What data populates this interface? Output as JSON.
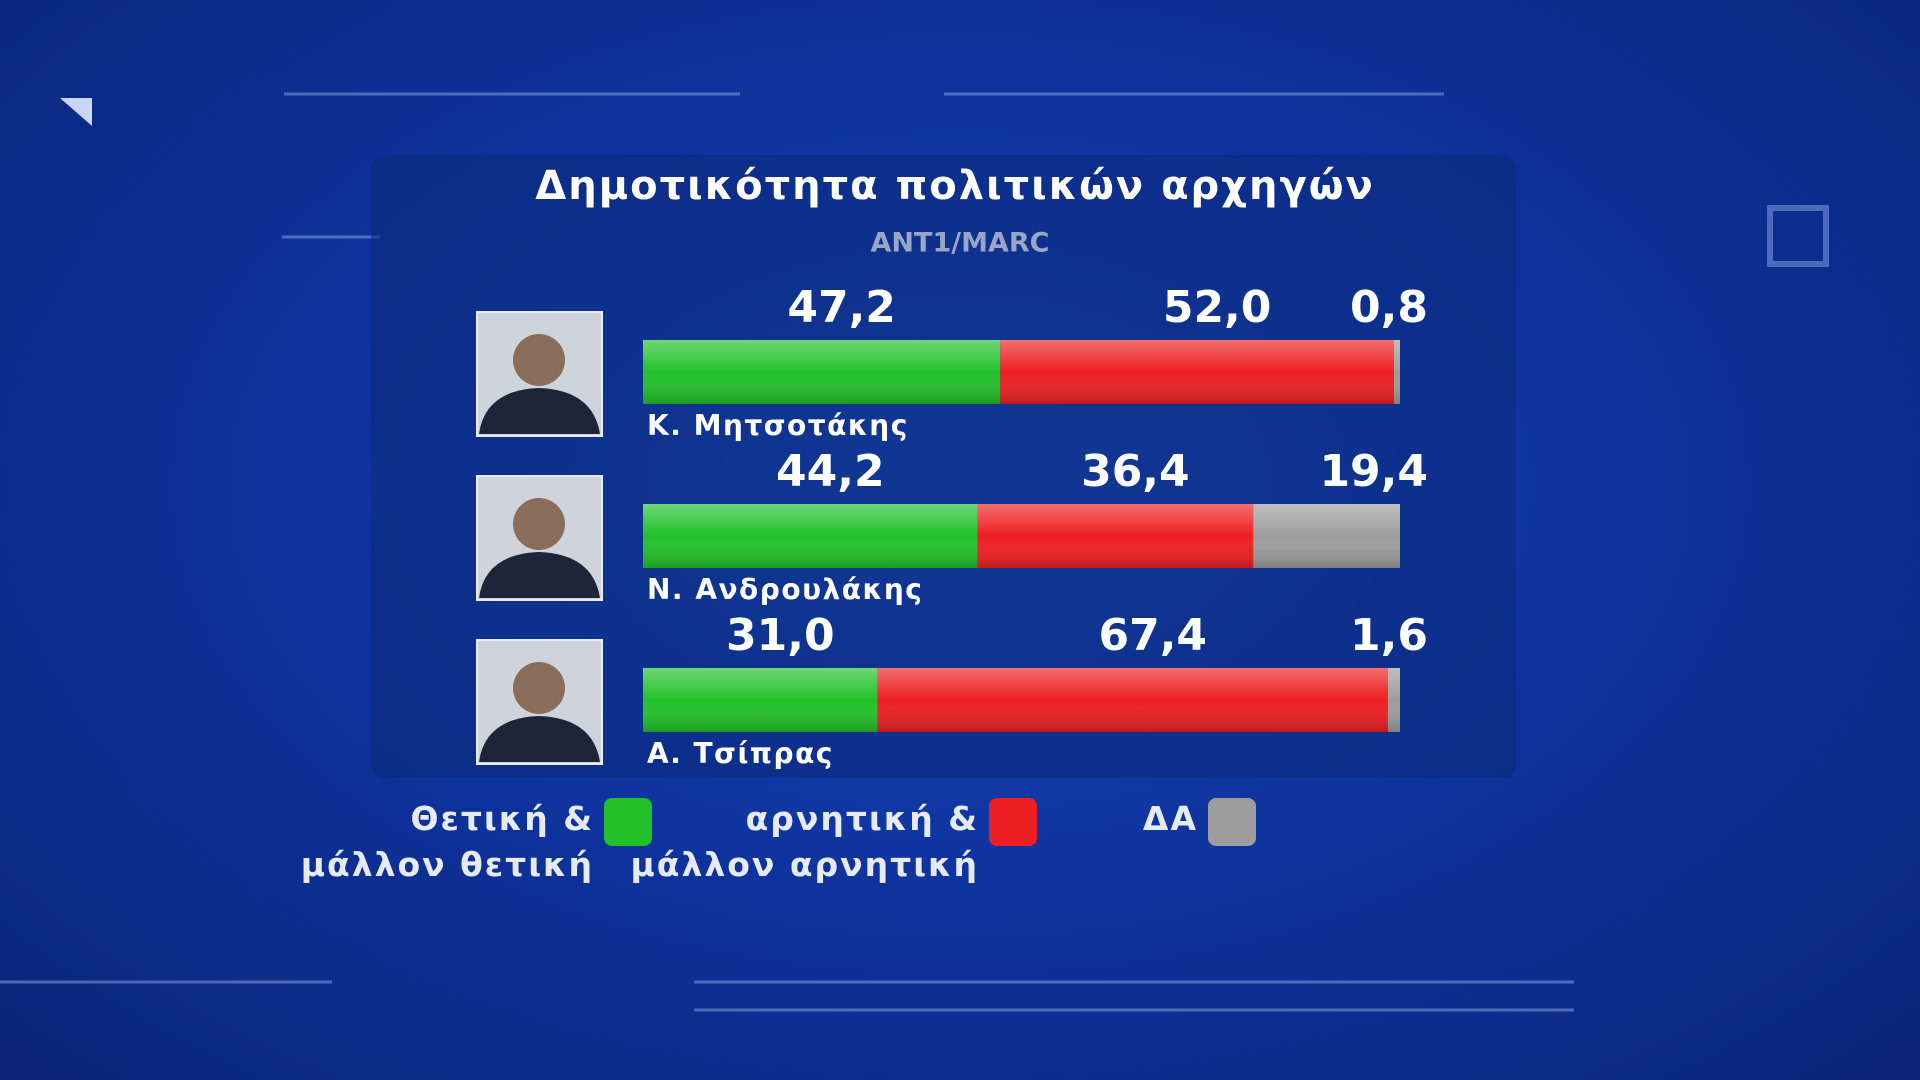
{
  "chart_data": {
    "type": "stacked-bar-horizontal",
    "title": "Δημοτικότητα πολιτικών αρχηγών",
    "subtitle": "ANT1/MARC",
    "categories": [
      "Κ. Μητσοτάκης",
      "Ν. Ανδρουλάκης",
      "Α. Τσίπρας"
    ],
    "series": [
      {
        "name": "Θετική & μάλλον θετική",
        "color": "#22c12a",
        "values": [
          47.2,
          44.2,
          31.0
        ],
        "value_labels": [
          "47,2",
          "44,2",
          "31,0"
        ]
      },
      {
        "name": "αρνητική & μάλλον αρνητική",
        "color": "#ee1f22",
        "values": [
          52.0,
          36.4,
          67.4
        ],
        "value_labels": [
          "52,0",
          "36,4",
          "67,4"
        ]
      },
      {
        "name": "ΔΑ",
        "color": "#9d9d9d",
        "values": [
          0.8,
          19.4,
          1.6
        ],
        "value_labels": [
          "0,8",
          "19,4",
          "1,6"
        ]
      }
    ]
  }
}
